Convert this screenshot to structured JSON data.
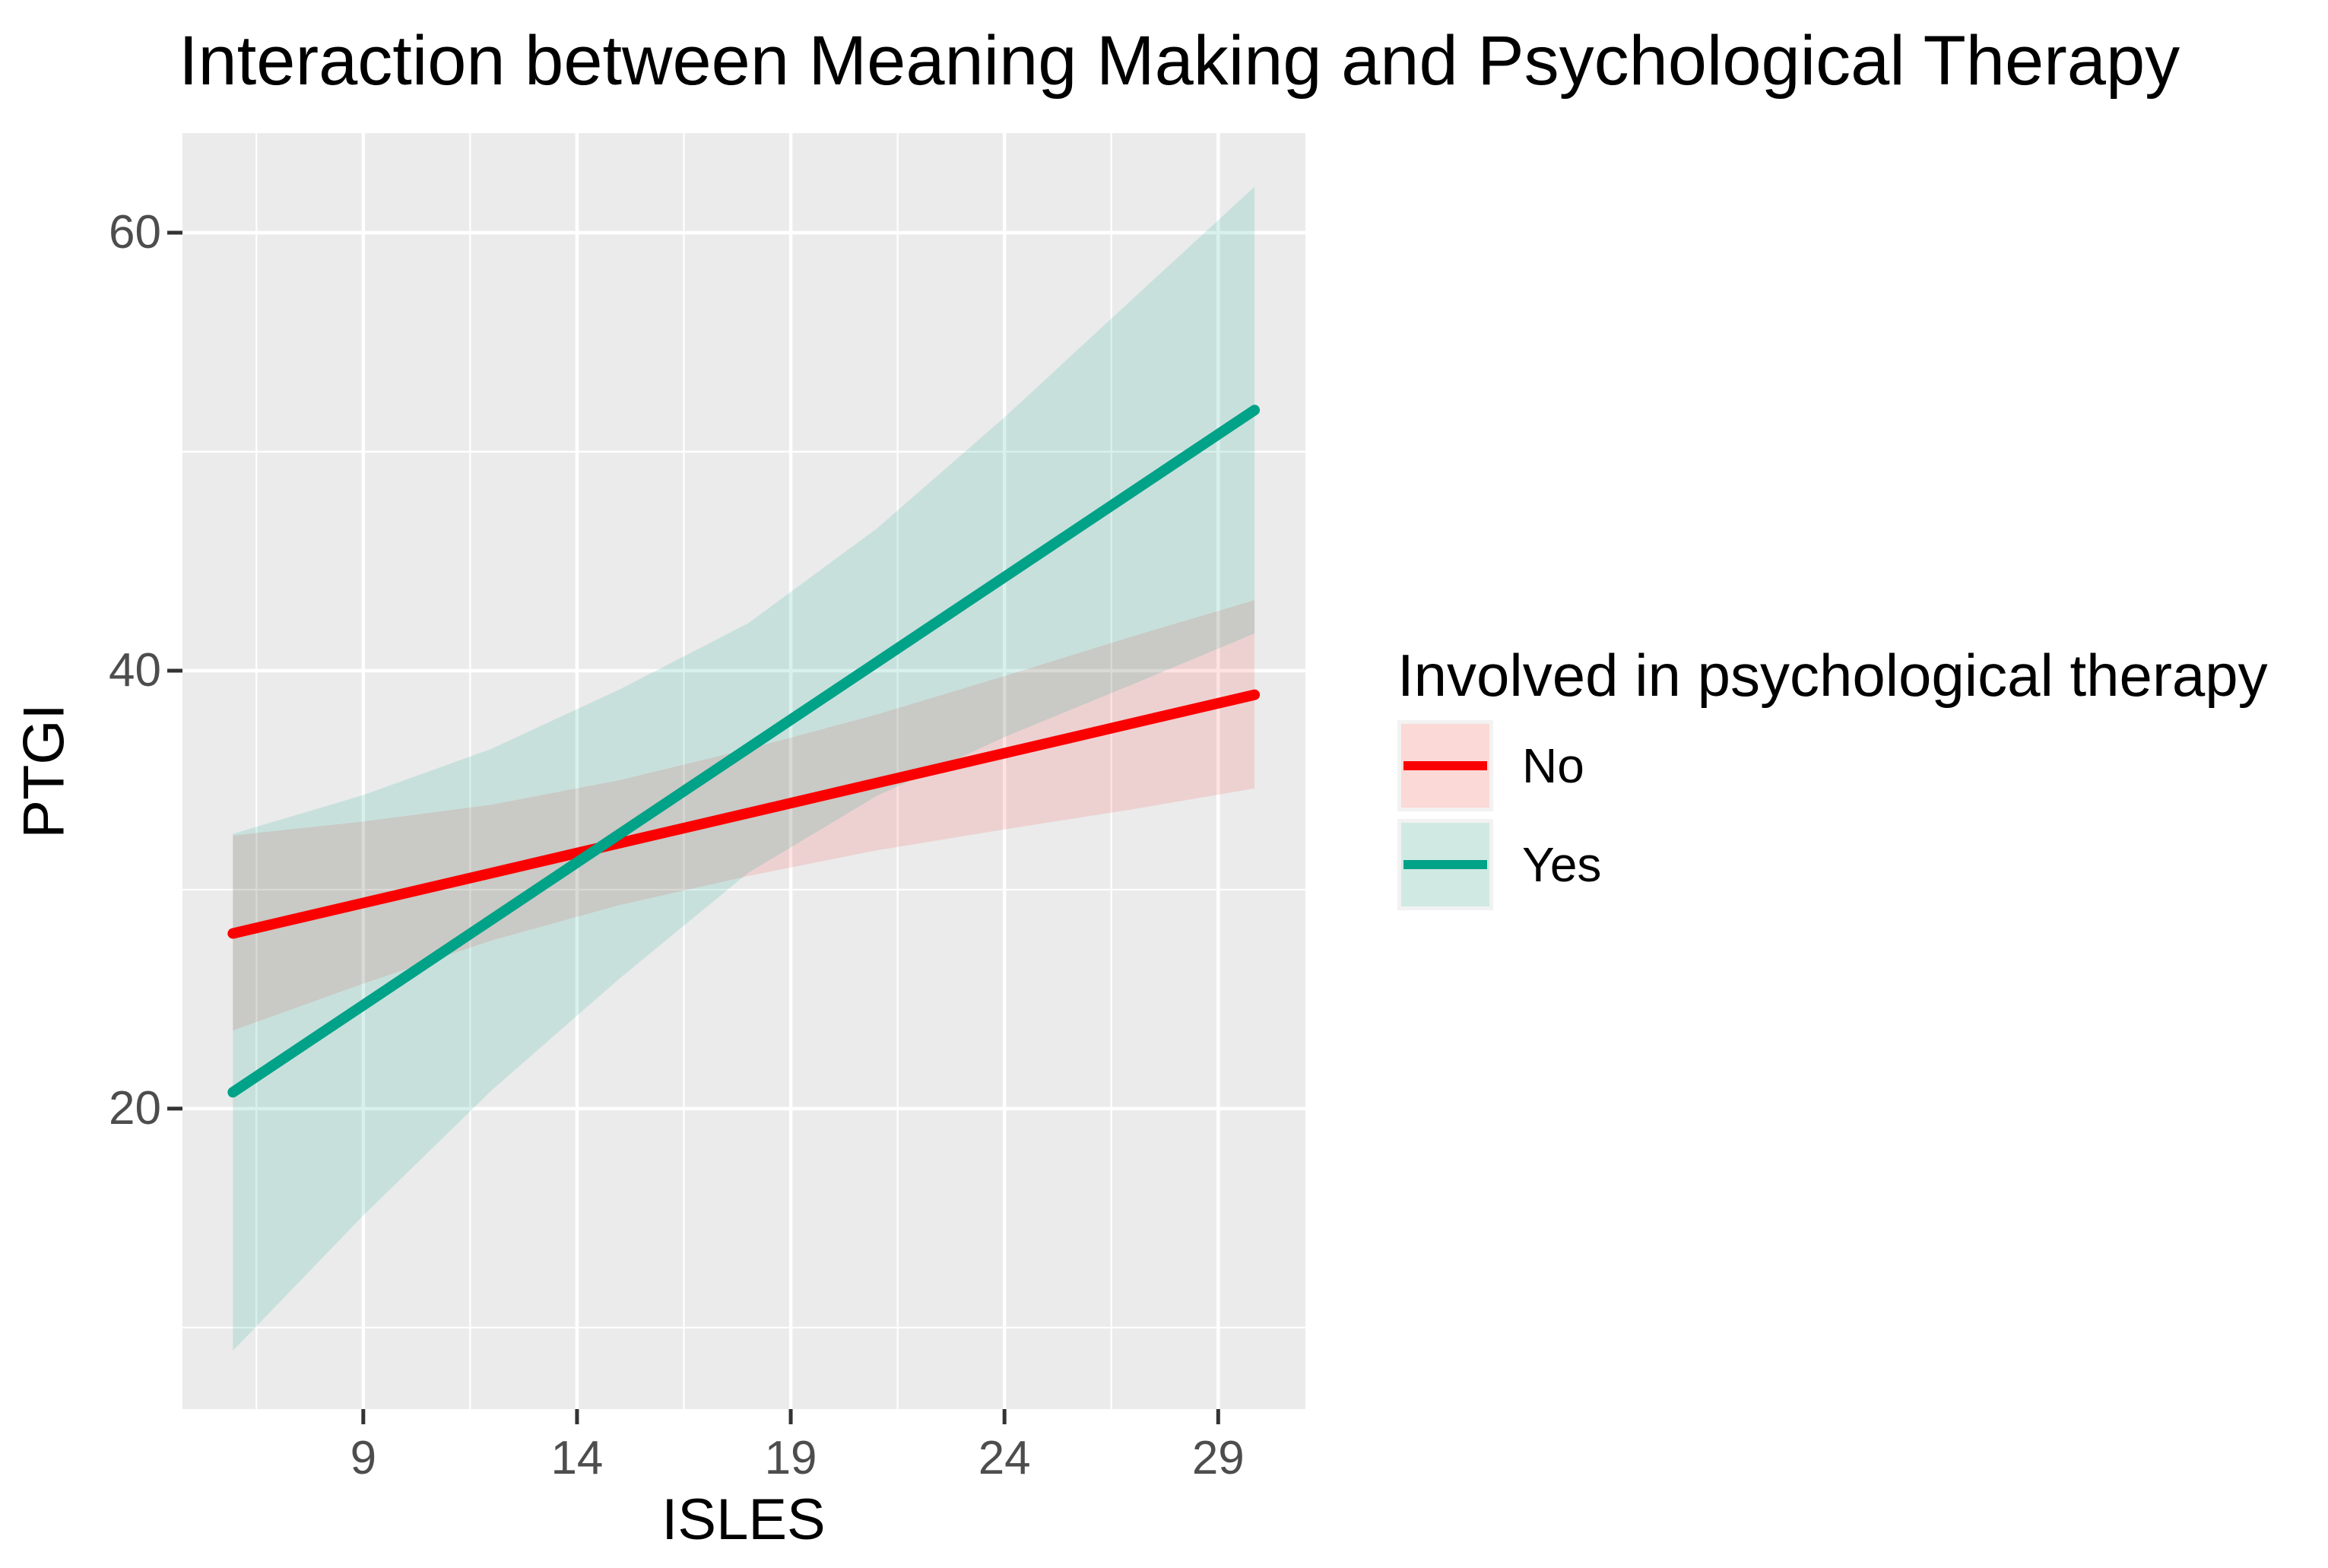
{
  "title": "Interaction between Meaning Making and Psychological Therapy",
  "axes": {
    "x_label": "ISLES",
    "y_label": "PTGI"
  },
  "legend": {
    "title": "Involved in psychological therapy",
    "items": [
      {
        "label": "No",
        "line_color": "#FB0000",
        "swatch_fill": "#FBD9D6"
      },
      {
        "label": "Yes",
        "line_color": "#00A288",
        "swatch_fill": "#D1E9E3"
      }
    ]
  },
  "style": {
    "panel_background": "#EBEBEB",
    "grid_color": "#FFFFFF",
    "tick_mark_color": "#333333",
    "tick_label_color": "#4D4D4D",
    "no_color": "#FB0000",
    "yes_color": "#00A288"
  },
  "chart_data": {
    "type": "line",
    "title": "Interaction between Meaning Making and Psychological Therapy",
    "xlabel": "ISLES",
    "ylabel": "PTGI",
    "xlim": [
      4.77,
      31.04
    ],
    "ylim": [
      6.28,
      64.55
    ],
    "x_ticks": [
      9,
      14,
      19,
      24,
      29
    ],
    "x_minor_gridlines": [
      6.5,
      11.5,
      16.5,
      21.5,
      26.5
    ],
    "y_ticks": [
      20,
      40,
      60
    ],
    "y_minor_gridlines": [
      10,
      30,
      50
    ],
    "grid": true,
    "legend_position": "right",
    "series": [
      {
        "name": "No",
        "color": "#FB0000",
        "fill_opacity": 0.11,
        "x": [
          5.95,
          29.85
        ],
        "y": [
          28.0,
          38.9
        ],
        "ribbon": {
          "x": [
            5.95,
            9,
            12,
            15,
            18,
            21,
            24,
            27,
            29.85
          ],
          "upper": [
            32.47,
            33.11,
            33.88,
            35.0,
            36.42,
            37.99,
            39.75,
            41.57,
            43.22
          ],
          "lower": [
            23.57,
            25.71,
            27.68,
            29.3,
            30.62,
            31.79,
            32.75,
            33.67,
            34.62
          ]
        }
      },
      {
        "name": "Yes",
        "color": "#00A288",
        "fill_opacity": 0.15,
        "x": [
          5.95,
          29.85
        ],
        "y": [
          20.75,
          51.9
        ],
        "ribbon": {
          "x": [
            5.95,
            9,
            12,
            15,
            18,
            21,
            24,
            27,
            29.85
          ],
          "upper": [
            32.55,
            34.32,
            36.43,
            39.15,
            42.16,
            46.47,
            51.57,
            56.98,
            62.1
          ],
          "lower": [
            8.95,
            15.12,
            20.83,
            25.95,
            30.76,
            34.27,
            36.97,
            39.38,
            41.7
          ]
        }
      }
    ]
  }
}
